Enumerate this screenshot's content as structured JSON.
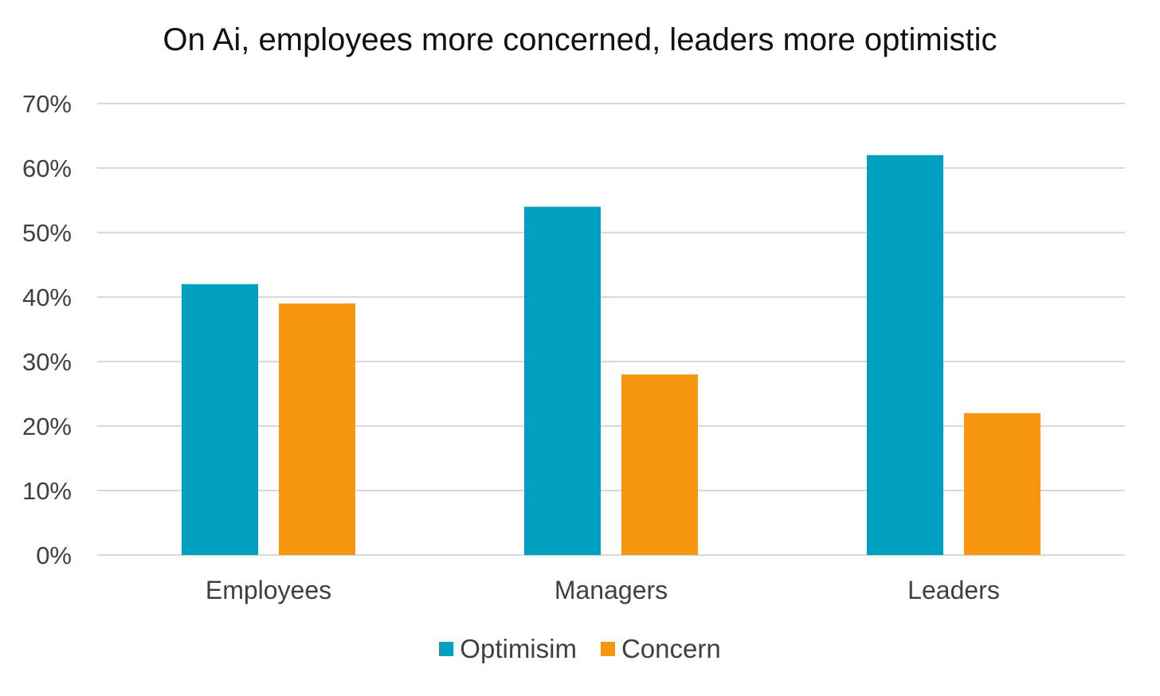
{
  "chart_data": {
    "type": "bar",
    "title": "On Ai, employees more concerned, leaders more optimistic",
    "categories": [
      "Employees",
      "Managers",
      "Leaders"
    ],
    "series": [
      {
        "name": "Optimisim",
        "values": [
          42,
          54,
          62
        ],
        "color": "#00A0BF"
      },
      {
        "name": "Concern",
        "values": [
          39,
          28,
          22
        ],
        "color": "#F7960F"
      }
    ],
    "ylim": [
      0,
      70
    ],
    "yticks": [
      "0%",
      "10%",
      "20%",
      "30%",
      "40%",
      "50%",
      "60%",
      "70%"
    ],
    "grid": true,
    "legend_position": "bottom"
  }
}
